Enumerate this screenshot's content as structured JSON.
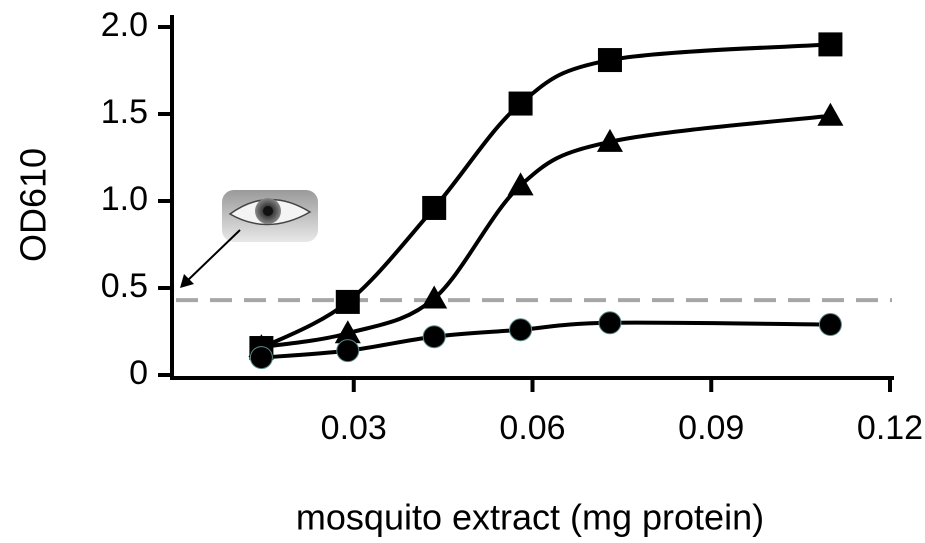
{
  "chart_data": {
    "type": "line",
    "x_label": "mosquito extract (mg protein)",
    "y_label": "OD610",
    "x": [
      0.0145,
      0.029,
      0.0435,
      0.058,
      0.073,
      0.11
    ],
    "series": [
      {
        "color": "#000000",
        "marker": "square",
        "values": [
          0.155,
          0.42,
          0.96,
          1.56,
          1.81,
          1.9
        ]
      },
      {
        "color": "#000000",
        "marker": "triangle",
        "values": [
          0.16,
          0.24,
          0.44,
          1.09,
          1.34,
          1.49
        ]
      },
      {
        "color": "#000000",
        "marker": "circle",
        "values": [
          0.1,
          0.14,
          0.22,
          0.26,
          0.3,
          0.29
        ]
      }
    ],
    "threshold": 0.43,
    "threshold_color": "#a6a6a6",
    "xlim": [
      0,
      0.12
    ],
    "xticks": [
      0.03,
      0.06,
      0.09,
      0.12
    ],
    "ylim": [
      0,
      2
    ],
    "yticks": [
      0,
      0.5,
      {
        "value": 1,
        "label": "1.0"
      },
      1.5,
      {
        "value": 2,
        "label": "2.0"
      }
    ],
    "smooth": true
  }
}
